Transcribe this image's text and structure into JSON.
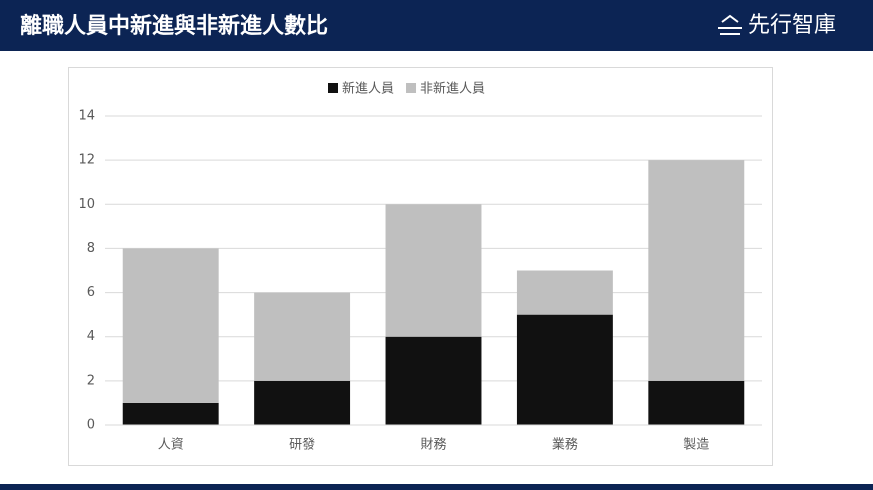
{
  "header": {
    "title": "離職人員中新進與非新進人數比",
    "logo": "先行智庫"
  },
  "chart_data": {
    "type": "stacked_bar",
    "categories": [
      "人資",
      "研發",
      "財務",
      "業務",
      "製造"
    ],
    "series": [
      {
        "name": "新進人員",
        "color": "#111111",
        "values": [
          1,
          2,
          4,
          5,
          2
        ]
      },
      {
        "name": "非新進人員",
        "color": "#bfbfbf",
        "values": [
          7,
          4,
          6,
          2,
          10
        ]
      }
    ],
    "ylim": [
      0,
      14
    ],
    "yticks": [
      0,
      2,
      4,
      6,
      8,
      10,
      12,
      14
    ],
    "grid": true,
    "legend": "top"
  }
}
